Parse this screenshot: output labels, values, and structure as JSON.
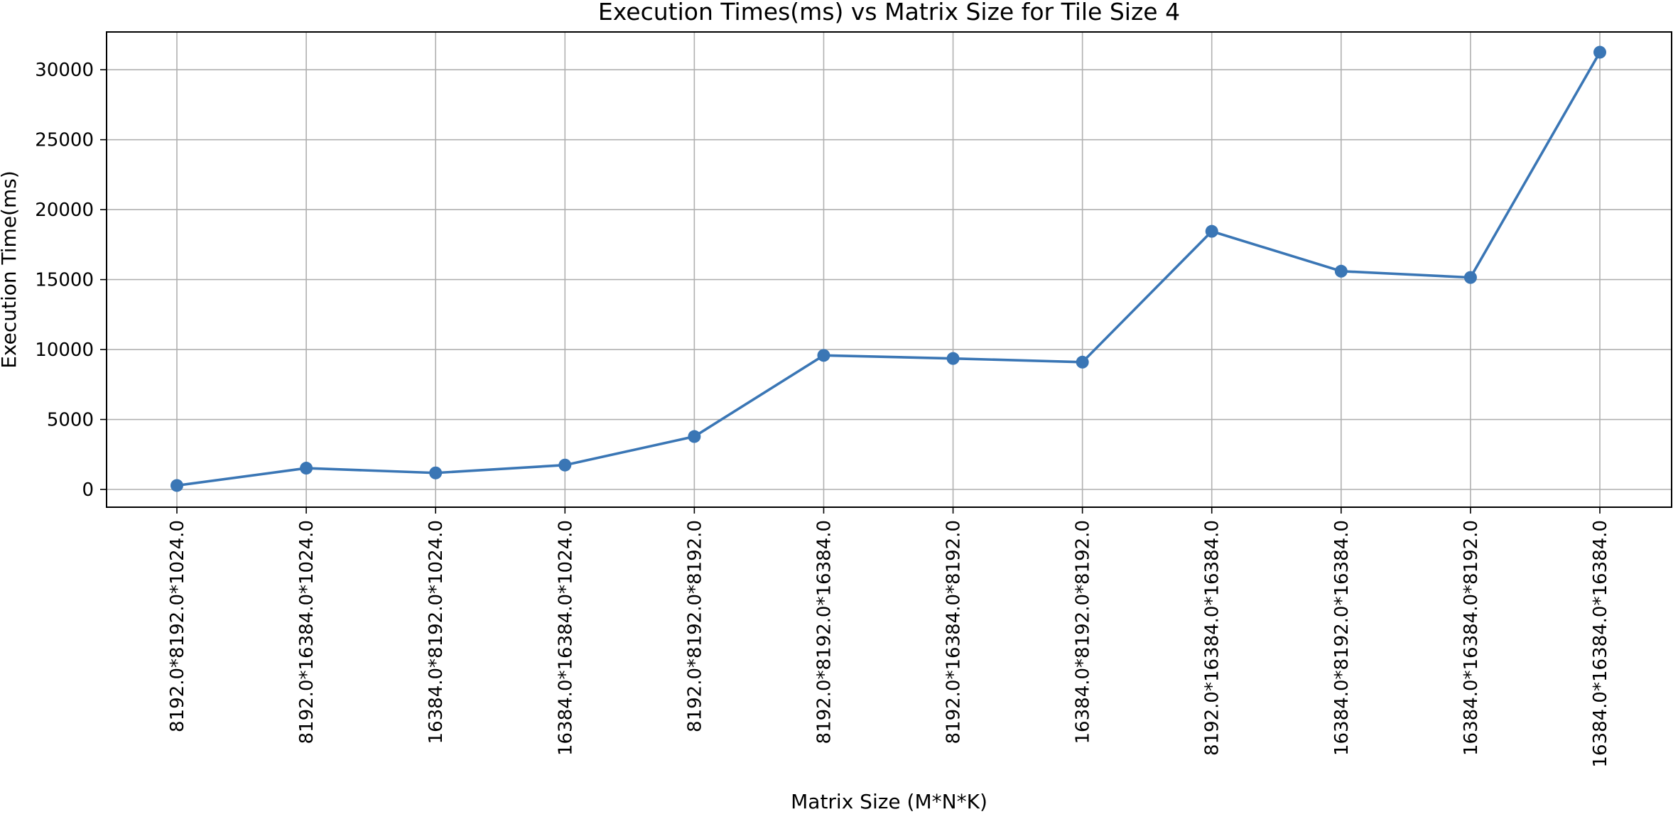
{
  "chart_data": {
    "type": "line",
    "title": "Execution Times(ms) vs Matrix Size for Tile Size 4",
    "xlabel": "Matrix Size (M*N*K)",
    "ylabel": "Execution Time(ms)",
    "categories": [
      "8192.0*8192.0*1024.0",
      "8192.0*16384.0*1024.0",
      "16384.0*8192.0*1024.0",
      "16384.0*16384.0*1024.0",
      "8192.0*8192.0*8192.0",
      "8192.0*8192.0*16384.0",
      "8192.0*16384.0*8192.0",
      "16384.0*8192.0*8192.0",
      "8192.0*16384.0*16384.0",
      "16384.0*8192.0*16384.0",
      "16384.0*16384.0*8192.0",
      "16384.0*16384.0*16384.0"
    ],
    "series": [
      {
        "values": [
          280,
          1520,
          1180,
          1740,
          3780,
          9580,
          9360,
          9100,
          18450,
          15600,
          15150,
          31250
        ],
        "color": "#3a76b5"
      }
    ],
    "yticks": [
      0,
      5000,
      10000,
      15000,
      20000,
      25000,
      30000
    ],
    "ytick_labels": [
      "0",
      "5000",
      "10000",
      "15000",
      "20000",
      "25000",
      "30000"
    ],
    "ylim": [
      -1270,
      32700
    ],
    "grid": true,
    "marker": "circle"
  }
}
